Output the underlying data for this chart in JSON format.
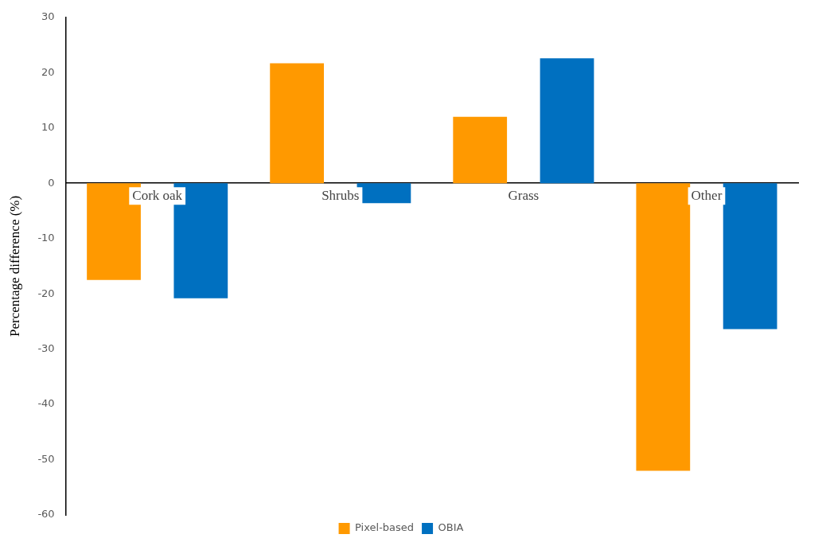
{
  "chart_data": {
    "type": "bar",
    "ylabel": "Percentage difference (%)",
    "categories": [
      "Cork oak",
      "Shrubs",
      "Grass",
      "Other"
    ],
    "series": [
      {
        "name": "Pixel-based",
        "color": "#ff9900",
        "values": [
          -17.5,
          21.7,
          12,
          -52
        ]
      },
      {
        "name": "OBIA",
        "color": "#0070c0",
        "values": [
          -20.8,
          -3.6,
          22.6,
          -26.4
        ]
      }
    ],
    "ylim": [
      -60,
      30
    ],
    "yticks": [
      -60,
      -50,
      -40,
      -30,
      -20,
      -10,
      0,
      10,
      20,
      30
    ],
    "grid": false,
    "legend": "bottom"
  }
}
